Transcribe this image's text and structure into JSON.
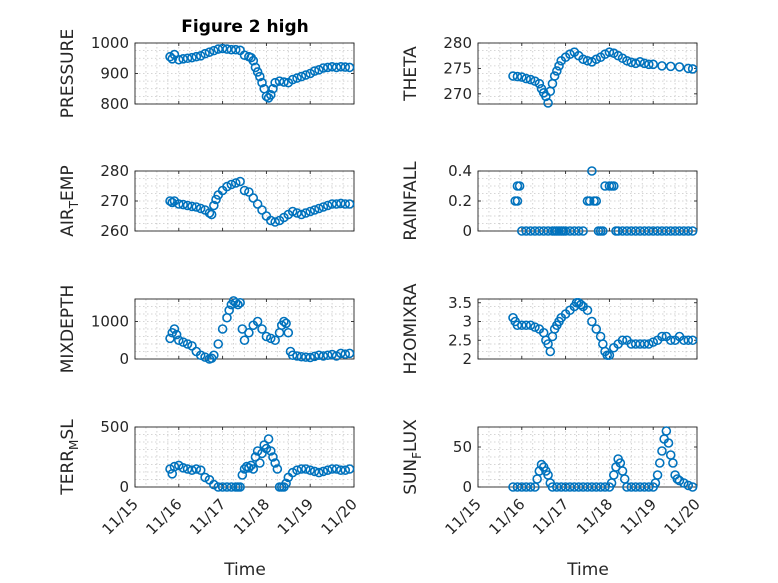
{
  "colors": {
    "series": "#0072BD",
    "axis": "#262626",
    "grid": "#c8c8c8"
  },
  "title": "Figure 2 high",
  "xlabel": "Time",
  "xticks": [
    "11/15",
    "11/16",
    "11/17",
    "11/18",
    "11/19",
    "11/20"
  ],
  "chart_data": [
    {
      "type": "scatter",
      "ylabel": "PRESSURE",
      "ylim": [
        800,
        1000
      ],
      "yticks": [
        "800",
        "900",
        "1000"
      ],
      "yticks_values": [
        800,
        900,
        1000
      ],
      "xlim": [
        15,
        20
      ],
      "grid": true,
      "series": [
        {
          "x": [
            15.8,
            15.85,
            15.9,
            16.0,
            16.1,
            16.2,
            16.3,
            16.4,
            16.5,
            16.6,
            16.7,
            16.8,
            16.9,
            17.0,
            17.1,
            17.2,
            17.3,
            17.4,
            17.5,
            17.6,
            17.65,
            17.7,
            17.75,
            17.8,
            17.85,
            17.9,
            17.95,
            18.0,
            18.05,
            18.1,
            18.15,
            18.2,
            18.3,
            18.4,
            18.5,
            18.6,
            18.7,
            18.8,
            18.9,
            19.0,
            19.1,
            19.2,
            19.3,
            19.4,
            19.5,
            19.6,
            19.7,
            19.8,
            19.9
          ],
          "y": [
            955,
            948,
            962,
            945,
            948,
            950,
            952,
            955,
            958,
            965,
            970,
            975,
            980,
            982,
            980,
            978,
            978,
            976,
            960,
            955,
            952,
            942,
            920,
            905,
            890,
            870,
            850,
            825,
            820,
            830,
            850,
            870,
            875,
            872,
            870,
            880,
            885,
            890,
            895,
            900,
            908,
            912,
            918,
            920,
            922,
            920,
            922,
            921,
            920
          ]
        }
      ]
    },
    {
      "type": "scatter",
      "ylabel": "THETA",
      "ylim": [
        268,
        280
      ],
      "yticks": [
        "270",
        "275",
        "280"
      ],
      "yticks_values": [
        270,
        275,
        280
      ],
      "xlim": [
        15,
        20
      ],
      "grid": true,
      "series": [
        {
          "x": [
            15.8,
            15.9,
            16.0,
            16.1,
            16.2,
            16.3,
            16.4,
            16.45,
            16.5,
            16.55,
            16.6,
            16.65,
            16.7,
            16.75,
            16.8,
            16.85,
            16.9,
            17.0,
            17.1,
            17.2,
            17.3,
            17.4,
            17.5,
            17.6,
            17.7,
            17.8,
            17.9,
            18.0,
            18.1,
            18.2,
            18.3,
            18.4,
            18.5,
            18.6,
            18.7,
            18.8,
            18.9,
            19.0,
            19.2,
            19.4,
            19.6,
            19.8,
            19.9
          ],
          "y": [
            273.5,
            273.4,
            273.3,
            273.0,
            272.8,
            272.5,
            272.0,
            271.0,
            270.2,
            269.5,
            268.2,
            270.5,
            272.0,
            273.5,
            274.5,
            275.5,
            276.5,
            277.2,
            277.8,
            278.2,
            277.5,
            276.8,
            276.5,
            276.3,
            276.8,
            277.2,
            277.8,
            278.2,
            278.0,
            277.5,
            277.0,
            276.5,
            276.2,
            276.0,
            276.3,
            276.0,
            275.8,
            275.8,
            275.5,
            275.4,
            275.3,
            275.0,
            274.9
          ]
        }
      ]
    },
    {
      "type": "scatter",
      "ylabel": "AIR_TEMP",
      "ylim": [
        260,
        280
      ],
      "yticks": [
        "260",
        "270",
        "280"
      ],
      "yticks_values": [
        260,
        270,
        280
      ],
      "xlim": [
        15,
        20
      ],
      "grid": true,
      "series": [
        {
          "x": [
            15.8,
            15.85,
            15.9,
            16.0,
            16.1,
            16.2,
            16.3,
            16.4,
            16.5,
            16.6,
            16.7,
            16.75,
            16.8,
            16.85,
            16.9,
            17.0,
            17.1,
            17.2,
            17.3,
            17.4,
            17.5,
            17.6,
            17.7,
            17.8,
            17.9,
            18.0,
            18.1,
            18.2,
            18.3,
            18.4,
            18.5,
            18.6,
            18.7,
            18.8,
            18.9,
            19.0,
            19.1,
            19.2,
            19.3,
            19.4,
            19.5,
            19.6,
            19.7,
            19.8,
            19.9
          ],
          "y": [
            270,
            269.5,
            270,
            269,
            268.8,
            268.5,
            268.2,
            268,
            267.5,
            267,
            266,
            265.5,
            268.5,
            270.5,
            272,
            273.5,
            274.8,
            275.5,
            276,
            276.5,
            273.5,
            273,
            271,
            269,
            267,
            265,
            263.5,
            263,
            263.5,
            264.5,
            265.5,
            266.5,
            266,
            265.5,
            266,
            266.5,
            267,
            267.5,
            268,
            268.5,
            269,
            269,
            269.2,
            269,
            269
          ]
        }
      ]
    },
    {
      "type": "scatter",
      "ylabel": "RAINFALL",
      "ylim": [
        0,
        0.4
      ],
      "yticks": [
        "0",
        "0.2",
        "0.4"
      ],
      "yticks_values": [
        0,
        0.2,
        0.4
      ],
      "xlim": [
        15,
        20
      ],
      "grid": true,
      "series": [
        {
          "x": [
            15.85,
            15.9,
            15.9,
            15.95,
            16.0,
            16.1,
            16.2,
            16.3,
            16.4,
            16.5,
            16.6,
            16.7,
            16.75,
            16.8,
            16.85,
            16.9,
            16.95,
            17.0,
            17.1,
            17.2,
            17.3,
            17.4,
            17.5,
            17.55,
            17.6,
            17.65,
            17.7,
            17.75,
            17.8,
            17.85,
            17.9,
            18.0,
            18.05,
            18.1,
            18.15,
            18.2,
            18.3,
            18.4,
            18.5,
            18.6,
            18.7,
            18.8,
            18.9,
            19.0,
            19.1,
            19.2,
            19.3,
            19.4,
            19.5,
            19.6,
            19.7,
            19.8,
            19.9
          ],
          "y": [
            0.2,
            0.2,
            0.3,
            0.3,
            0,
            0,
            0,
            0,
            0,
            0,
            0,
            0,
            0,
            0,
            0,
            0,
            0,
            0,
            0,
            0,
            0,
            0,
            0.2,
            0.2,
            0.4,
            0.2,
            0.2,
            0,
            0,
            0,
            0.3,
            0.3,
            0.3,
            0.3,
            0,
            0,
            0,
            0,
            0,
            0,
            0,
            0,
            0,
            0,
            0,
            0,
            0,
            0,
            0,
            0,
            0,
            0,
            0
          ]
        }
      ]
    },
    {
      "type": "scatter",
      "ylabel": "MIXDEPTH",
      "ylim": [
        0,
        1600
      ],
      "yticks": [
        "0",
        "1000"
      ],
      "yticks_values": [
        0,
        1000
      ],
      "xlim": [
        15,
        20
      ],
      "grid": true,
      "series": [
        {
          "x": [
            15.8,
            15.85,
            15.9,
            15.95,
            16.0,
            16.1,
            16.2,
            16.3,
            16.4,
            16.5,
            16.6,
            16.7,
            16.75,
            16.8,
            16.9,
            17.0,
            17.1,
            17.15,
            17.2,
            17.25,
            17.3,
            17.35,
            17.4,
            17.45,
            17.5,
            17.6,
            17.7,
            17.8,
            17.9,
            18.0,
            18.1,
            18.2,
            18.3,
            18.35,
            18.4,
            18.45,
            18.5,
            18.55,
            18.6,
            18.7,
            18.8,
            18.9,
            19.0,
            19.1,
            19.2,
            19.3,
            19.4,
            19.5,
            19.6,
            19.7,
            19.8,
            19.9
          ],
          "y": [
            550,
            700,
            800,
            650,
            500,
            450,
            400,
            350,
            200,
            100,
            50,
            0,
            20,
            100,
            400,
            800,
            1100,
            1300,
            1450,
            1550,
            1500,
            1450,
            1500,
            800,
            500,
            700,
            900,
            1000,
            800,
            600,
            550,
            500,
            700,
            900,
            1000,
            950,
            700,
            200,
            100,
            80,
            60,
            50,
            40,
            70,
            100,
            80,
            100,
            120,
            80,
            150,
            130,
            150
          ]
        }
      ]
    },
    {
      "type": "scatter",
      "ylabel": "H2OMIXRA",
      "ylim": [
        2,
        3.6
      ],
      "yticks": [
        "2",
        "2.5",
        "3",
        "3.5"
      ],
      "yticks_values": [
        2,
        2.5,
        3,
        3.5
      ],
      "xlim": [
        15,
        20
      ],
      "grid": true,
      "series": [
        {
          "x": [
            15.8,
            15.85,
            15.9,
            16.0,
            16.1,
            16.2,
            16.3,
            16.4,
            16.5,
            16.55,
            16.6,
            16.65,
            16.7,
            16.75,
            16.8,
            16.85,
            16.9,
            17.0,
            17.1,
            17.2,
            17.25,
            17.3,
            17.35,
            17.4,
            17.5,
            17.6,
            17.7,
            17.8,
            17.85,
            17.9,
            17.95,
            18.0,
            18.1,
            18.2,
            18.3,
            18.4,
            18.5,
            18.6,
            18.7,
            18.8,
            18.9,
            19.0,
            19.1,
            19.2,
            19.3,
            19.4,
            19.5,
            19.6,
            19.7,
            19.8,
            19.9
          ],
          "y": [
            3.1,
            3.0,
            2.9,
            2.9,
            2.9,
            2.9,
            2.85,
            2.8,
            2.7,
            2.5,
            2.4,
            2.2,
            2.6,
            2.8,
            2.9,
            3.0,
            3.1,
            3.2,
            3.3,
            3.4,
            3.5,
            3.5,
            3.45,
            3.4,
            3.3,
            3.0,
            2.8,
            2.6,
            2.4,
            2.2,
            2.1,
            2.1,
            2.3,
            2.4,
            2.5,
            2.5,
            2.4,
            2.4,
            2.4,
            2.4,
            2.4,
            2.45,
            2.5,
            2.6,
            2.6,
            2.5,
            2.5,
            2.6,
            2.5,
            2.5,
            2.5
          ]
        }
      ]
    },
    {
      "type": "scatter",
      "ylabel": "TERR_MSL",
      "ylim": [
        0,
        500
      ],
      "yticks": [
        "0",
        "500"
      ],
      "yticks_values": [
        0,
        500
      ],
      "xlim": [
        15,
        20
      ],
      "grid": true,
      "series": [
        {
          "x": [
            15.8,
            15.85,
            15.9,
            16.0,
            16.1,
            16.2,
            16.3,
            16.4,
            16.5,
            16.6,
            16.7,
            16.8,
            16.9,
            17.0,
            17.1,
            17.2,
            17.3,
            17.35,
            17.4,
            17.45,
            17.5,
            17.55,
            17.6,
            17.65,
            17.7,
            17.75,
            17.8,
            17.85,
            17.9,
            17.95,
            18.0,
            18.05,
            18.1,
            18.15,
            18.2,
            18.25,
            18.3,
            18.35,
            18.4,
            18.45,
            18.5,
            18.6,
            18.7,
            18.8,
            18.9,
            19.0,
            19.1,
            19.2,
            19.3,
            19.4,
            19.5,
            19.6,
            19.7,
            19.8,
            19.9
          ],
          "y": [
            150,
            110,
            170,
            180,
            160,
            150,
            140,
            150,
            140,
            80,
            60,
            20,
            0,
            0,
            0,
            0,
            0,
            0,
            0,
            100,
            150,
            170,
            160,
            180,
            150,
            250,
            300,
            200,
            280,
            350,
            320,
            400,
            300,
            250,
            200,
            150,
            0,
            0,
            0,
            30,
            80,
            120,
            140,
            150,
            150,
            140,
            130,
            120,
            130,
            140,
            150,
            150,
            140,
            140,
            150
          ]
        }
      ]
    },
    {
      "type": "scatter",
      "ylabel": "SUN_FLUX",
      "ylim": [
        0,
        75
      ],
      "yticks": [
        "0",
        "50"
      ],
      "yticks_values": [
        0,
        50
      ],
      "xlim": [
        15,
        20
      ],
      "grid": true,
      "series": [
        {
          "x": [
            15.8,
            15.9,
            16.0,
            16.1,
            16.2,
            16.3,
            16.35,
            16.4,
            16.45,
            16.5,
            16.55,
            16.6,
            16.65,
            16.7,
            16.8,
            16.9,
            17.0,
            17.1,
            17.2,
            17.3,
            17.4,
            17.5,
            17.6,
            17.7,
            17.8,
            17.9,
            18.0,
            18.05,
            18.1,
            18.15,
            18.2,
            18.25,
            18.3,
            18.35,
            18.4,
            18.5,
            18.6,
            18.7,
            18.8,
            18.9,
            19.0,
            19.05,
            19.1,
            19.15,
            19.2,
            19.25,
            19.3,
            19.35,
            19.4,
            19.45,
            19.5,
            19.55,
            19.6,
            19.7,
            19.8,
            19.9
          ],
          "y": [
            0,
            0,
            0,
            0,
            0,
            0,
            10,
            20,
            28,
            25,
            20,
            15,
            5,
            0,
            0,
            0,
            0,
            0,
            0,
            0,
            0,
            0,
            0,
            0,
            0,
            0,
            0,
            5,
            15,
            25,
            35,
            30,
            20,
            10,
            0,
            0,
            0,
            0,
            0,
            0,
            0,
            5,
            15,
            30,
            45,
            60,
            70,
            55,
            40,
            30,
            15,
            10,
            8,
            5,
            2,
            0
          ]
        }
      ]
    }
  ],
  "ylabels_display": [
    {
      "main": "PRESSURE",
      "sub": "",
      "tail": ""
    },
    {
      "main": "THETA",
      "sub": "",
      "tail": ""
    },
    {
      "main": "AIR",
      "sub": "T",
      "tail": "EMP"
    },
    {
      "main": "RAINFALL",
      "sub": "",
      "tail": ""
    },
    {
      "main": "MIXDEPTH",
      "sub": "",
      "tail": ""
    },
    {
      "main": "H2OMIXRA",
      "sub": "",
      "tail": ""
    },
    {
      "main": "TERR",
      "sub": "M",
      "tail": "SL"
    },
    {
      "main": "SUN",
      "sub": "F",
      "tail": "LUX"
    }
  ]
}
